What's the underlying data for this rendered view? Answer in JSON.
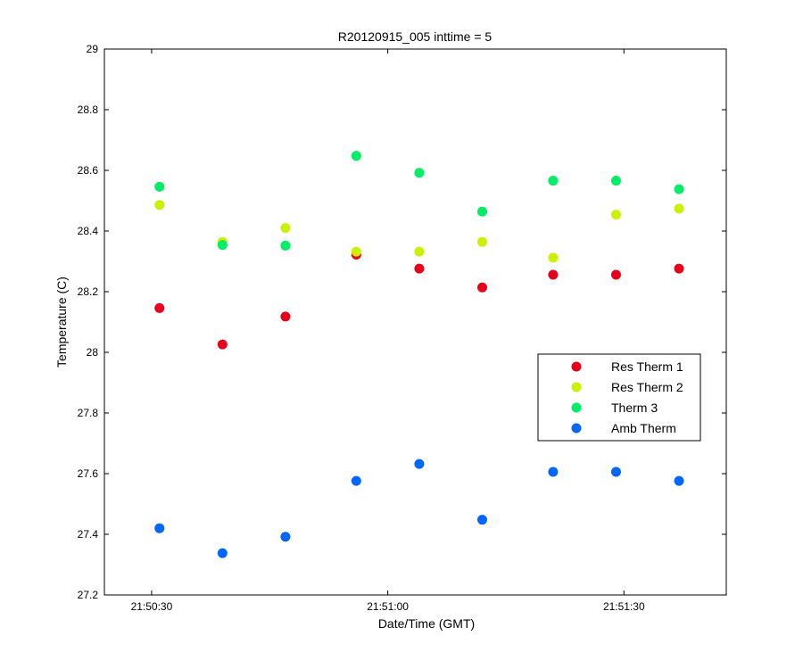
{
  "chart_data": {
    "type": "scatter",
    "title": "R20120915_005 inttime = 5",
    "xlabel": "Date/Time (GMT)",
    "ylabel": "Temperature (C)",
    "x_unit": "time of day (GMT)",
    "xlim": [
      "21:50:24",
      "21:51:43"
    ],
    "ylim": [
      27.2,
      29
    ],
    "x_ticks": [
      "21:50:30",
      "21:51:00",
      "21:51:30"
    ],
    "y_ticks": [
      27.2,
      27.4,
      27.6,
      27.8,
      28,
      28.2,
      28.4,
      28.6,
      28.8,
      29
    ],
    "y_tick_labels": [
      "27.2",
      "27.4",
      "27.6",
      "27.8",
      "28",
      "28.2",
      "28.4",
      "28.6",
      "28.8",
      "29"
    ],
    "grid": false,
    "legend_position": "center-right",
    "x": [
      "21:50:31",
      "21:50:39",
      "21:50:47",
      "21:50:56",
      "21:51:04",
      "21:51:12",
      "21:51:21",
      "21:51:29",
      "21:51:37"
    ],
    "series": [
      {
        "name": "Res Therm 1",
        "color": "#e8001a",
        "values": [
          28.146,
          28.026,
          28.118,
          28.322,
          28.276,
          28.214,
          28.256,
          28.256,
          28.276
        ]
      },
      {
        "name": "Res Therm 2",
        "color": "#ccf000",
        "values": [
          28.486,
          28.364,
          28.41,
          28.332,
          28.332,
          28.364,
          28.312,
          28.454,
          28.474
        ]
      },
      {
        "name": "Therm 3",
        "color": "#00ee66",
        "values": [
          28.546,
          28.354,
          28.352,
          28.648,
          28.592,
          28.464,
          28.566,
          28.566,
          28.538
        ]
      },
      {
        "name": "Amb Therm",
        "color": "#0066ff",
        "values": [
          27.42,
          27.338,
          27.392,
          27.576,
          27.632,
          27.448,
          27.606,
          27.606,
          27.576
        ]
      }
    ]
  }
}
